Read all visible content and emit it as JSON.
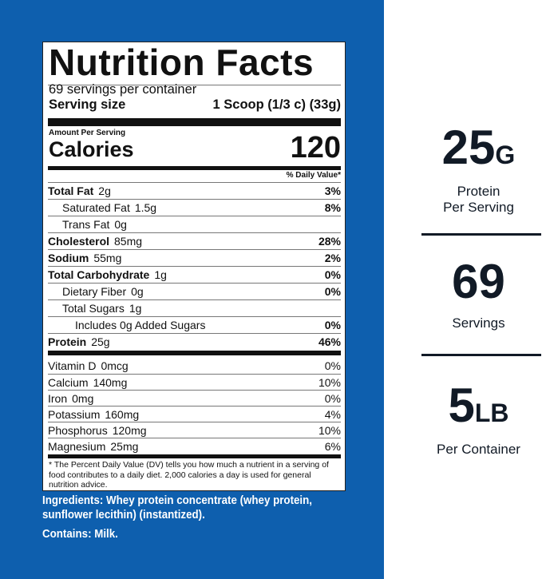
{
  "label": {
    "title": "Nutrition Facts",
    "servings_per_container": "69 servings per container",
    "serving_size_label": "Serving size",
    "serving_size_value": "1 Scoop (1/3 c) (33g)",
    "amount_per_serving": "Amount Per Serving",
    "calories_label": "Calories",
    "calories_value": "120",
    "dv_header": "% Daily Value*",
    "nutrients": [
      {
        "name": "Total Fat",
        "amount": "2g",
        "dv": "3%"
      },
      {
        "name": "Saturated Fat",
        "amount": "1.5g",
        "dv": "8%"
      },
      {
        "name": "Trans Fat",
        "amount": "0g",
        "dv": ""
      },
      {
        "name": "Cholesterol",
        "amount": "85mg",
        "dv": "28%"
      },
      {
        "name": "Sodium",
        "amount": "55mg",
        "dv": "2%"
      },
      {
        "name": "Total Carbohydrate",
        "amount": "1g",
        "dv": "0%"
      },
      {
        "name": "Dietary Fiber",
        "amount": "0g",
        "dv": "0%"
      },
      {
        "name": "Total Sugars",
        "amount": "1g",
        "dv": ""
      },
      {
        "name": "Includes 0g Added Sugars",
        "amount": "",
        "dv": "0%"
      },
      {
        "name": "Protein",
        "amount": "25g",
        "dv": "46%"
      }
    ],
    "vitamins": [
      {
        "name": "Vitamin D",
        "amount": "0mcg",
        "dv": "0%"
      },
      {
        "name": "Calcium",
        "amount": "140mg",
        "dv": "10%"
      },
      {
        "name": "Iron",
        "amount": "0mg",
        "dv": "0%"
      },
      {
        "name": "Potassium",
        "amount": "160mg",
        "dv": "4%"
      },
      {
        "name": "Phosphorus",
        "amount": "120mg",
        "dv": "10%"
      },
      {
        "name": "Magnesium",
        "amount": "25mg",
        "dv": "6%"
      }
    ],
    "footnote": "* The Percent Daily Value (DV) tells you how much a nutrient in a serving of food contributes to a daily diet. 2,000 calories a day is used for general nutrition advice."
  },
  "ingredients": "Ingredients: Whey protein concentrate (whey protein, sunflower lecithin) (instantized).",
  "contains": "Contains: Milk.",
  "stats": [
    {
      "value": "25",
      "unit": "G",
      "caption1": "Protein",
      "caption2": "Per Serving"
    },
    {
      "value": "69",
      "unit": "",
      "caption1": "Servings",
      "caption2": ""
    },
    {
      "value": "5",
      "unit": "LB",
      "caption1": "Per Container",
      "caption2": ""
    }
  ],
  "colors": {
    "panel": "#0e5fae",
    "text": "#111a26"
  }
}
